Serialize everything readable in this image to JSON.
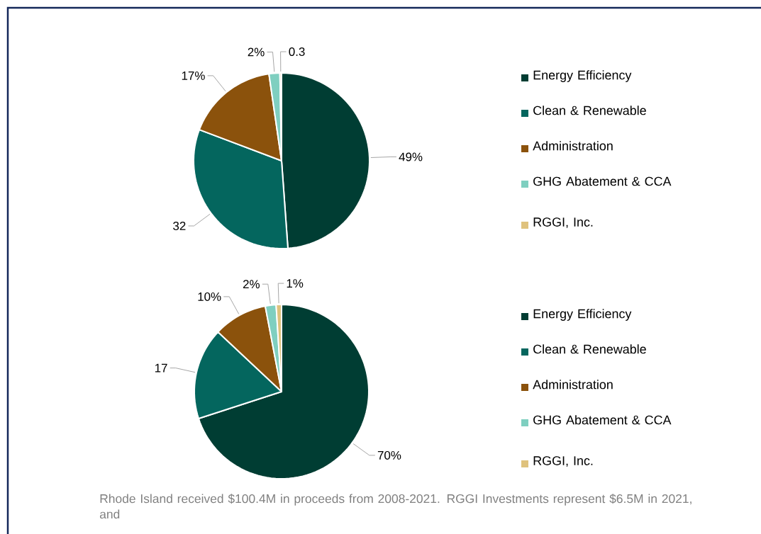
{
  "chart_data": [
    {
      "type": "pie",
      "categories": [
        "Energy Efficiency",
        "Clean & Renewable",
        "Administration",
        "GHG Abatement & CCA",
        "RGGI, Inc."
      ],
      "values": [
        49,
        32,
        17,
        2,
        0.3
      ],
      "value_labels": [
        "49%",
        "32",
        "17%",
        "2%",
        "0.3"
      ],
      "colors": [
        "#003d33",
        "#04665e",
        "#8b520c",
        "#7fcfc0",
        "#dfc27d"
      ],
      "legend": "right"
    },
    {
      "type": "pie",
      "categories": [
        "Energy Efficiency",
        "Clean & Renewable",
        "Administration",
        "GHG Abatement & CCA",
        "RGGI, Inc."
      ],
      "values": [
        70,
        17,
        10,
        2,
        1
      ],
      "value_labels": [
        "70%",
        "17",
        "10%",
        "2%",
        "1%"
      ],
      "colors": [
        "#003d33",
        "#04665e",
        "#8b520c",
        "#7fcfc0",
        "#dfc27d"
      ],
      "legend": "right",
      "annotations": [
        "Rhode Island received $100.4M in proceeds from 2008-2021. RGGI Investments represent $6.5M in 2021, and"
      ]
    }
  ]
}
